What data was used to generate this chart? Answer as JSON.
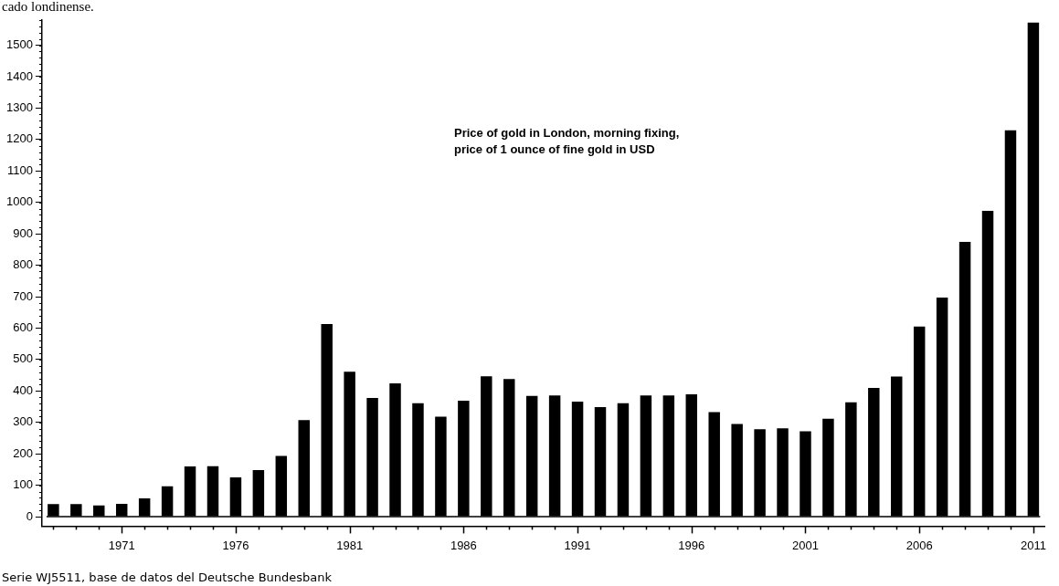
{
  "chart_data": {
    "type": "bar",
    "title": "Price of gold in London, morning fixing, price of 1 ounce of fine gold in USD",
    "annotations": [
      "cado londinense.",
      "Serie WJ5511, base de datos del Deutsche Bundesbank"
    ],
    "categories": [
      null,
      null,
      null,
      "1971",
      null,
      null,
      null,
      null,
      "1976",
      null,
      null,
      null,
      null,
      "1981",
      null,
      null,
      null,
      null,
      "1986",
      null,
      null,
      null,
      null,
      "1991",
      null,
      null,
      null,
      null,
      "1996",
      null,
      null,
      null,
      null,
      "2001",
      null,
      null,
      null,
      null,
      "2006",
      null,
      null,
      null,
      null,
      "2011"
    ],
    "values": [
      40,
      40,
      36,
      41,
      58,
      97,
      160,
      161,
      125,
      148,
      193,
      307,
      613,
      461,
      378,
      424,
      361,
      318,
      369,
      447,
      438,
      384,
      386,
      366,
      349,
      361,
      386,
      386,
      389,
      333,
      295,
      278,
      281,
      272,
      312,
      364,
      410,
      446,
      605,
      697,
      874,
      973,
      1229,
      1572
    ],
    "color": "#000000",
    "ylim": [
      -30,
      1580
    ],
    "yticks": [
      0,
      100,
      200,
      300,
      400,
      500,
      600,
      700,
      800,
      900,
      1000,
      1100,
      1200,
      1300,
      1400,
      1500
    ],
    "ref_lines": [
      {
        "axis": "y",
        "value": 0,
        "color": "#000000"
      }
    ],
    "grid": false,
    "legend": false
  }
}
